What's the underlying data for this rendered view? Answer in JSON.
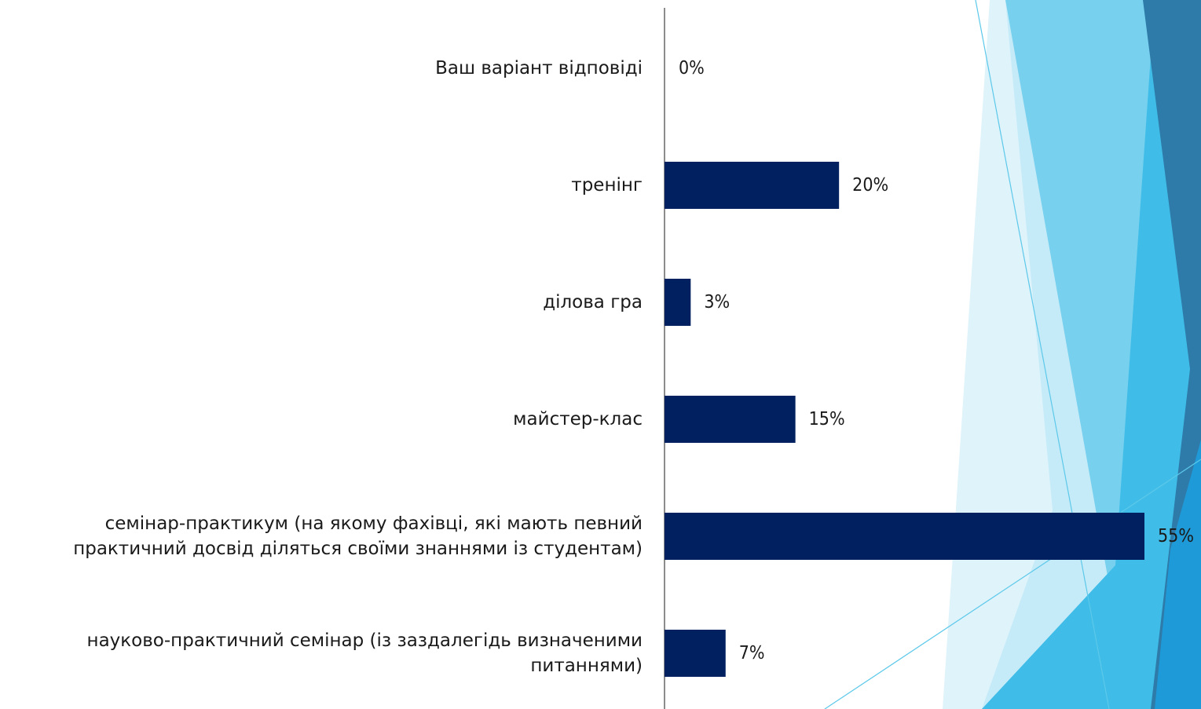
{
  "chart_data": {
    "type": "bar",
    "orientation": "horizontal",
    "categories": [
      "Ваш варіант відповіді",
      "тренінг",
      "ділова гра",
      "майстер-клас",
      "семінар-практикум (на якому фахівці, які мають певний практичний досвід діляться своїми знаннями із студентам)",
      "науково-практичний семінар (із заздалегідь визначеними питаннями)"
    ],
    "values": [
      0,
      20,
      3,
      15,
      55,
      7
    ],
    "value_labels": [
      "0%",
      "20%",
      "3%",
      "15%",
      "55%",
      "7%"
    ],
    "unit": "%",
    "bar_color": "#002060",
    "grid": false,
    "legend": "none"
  },
  "colors": {
    "bar": "#002060",
    "axis": "#8c8c8c",
    "decor_light": "#c6ebf8",
    "decor_mid": "#6fcdeb",
    "decor_bright": "#29b6e6",
    "decor_dark": "#2d6f9c"
  }
}
